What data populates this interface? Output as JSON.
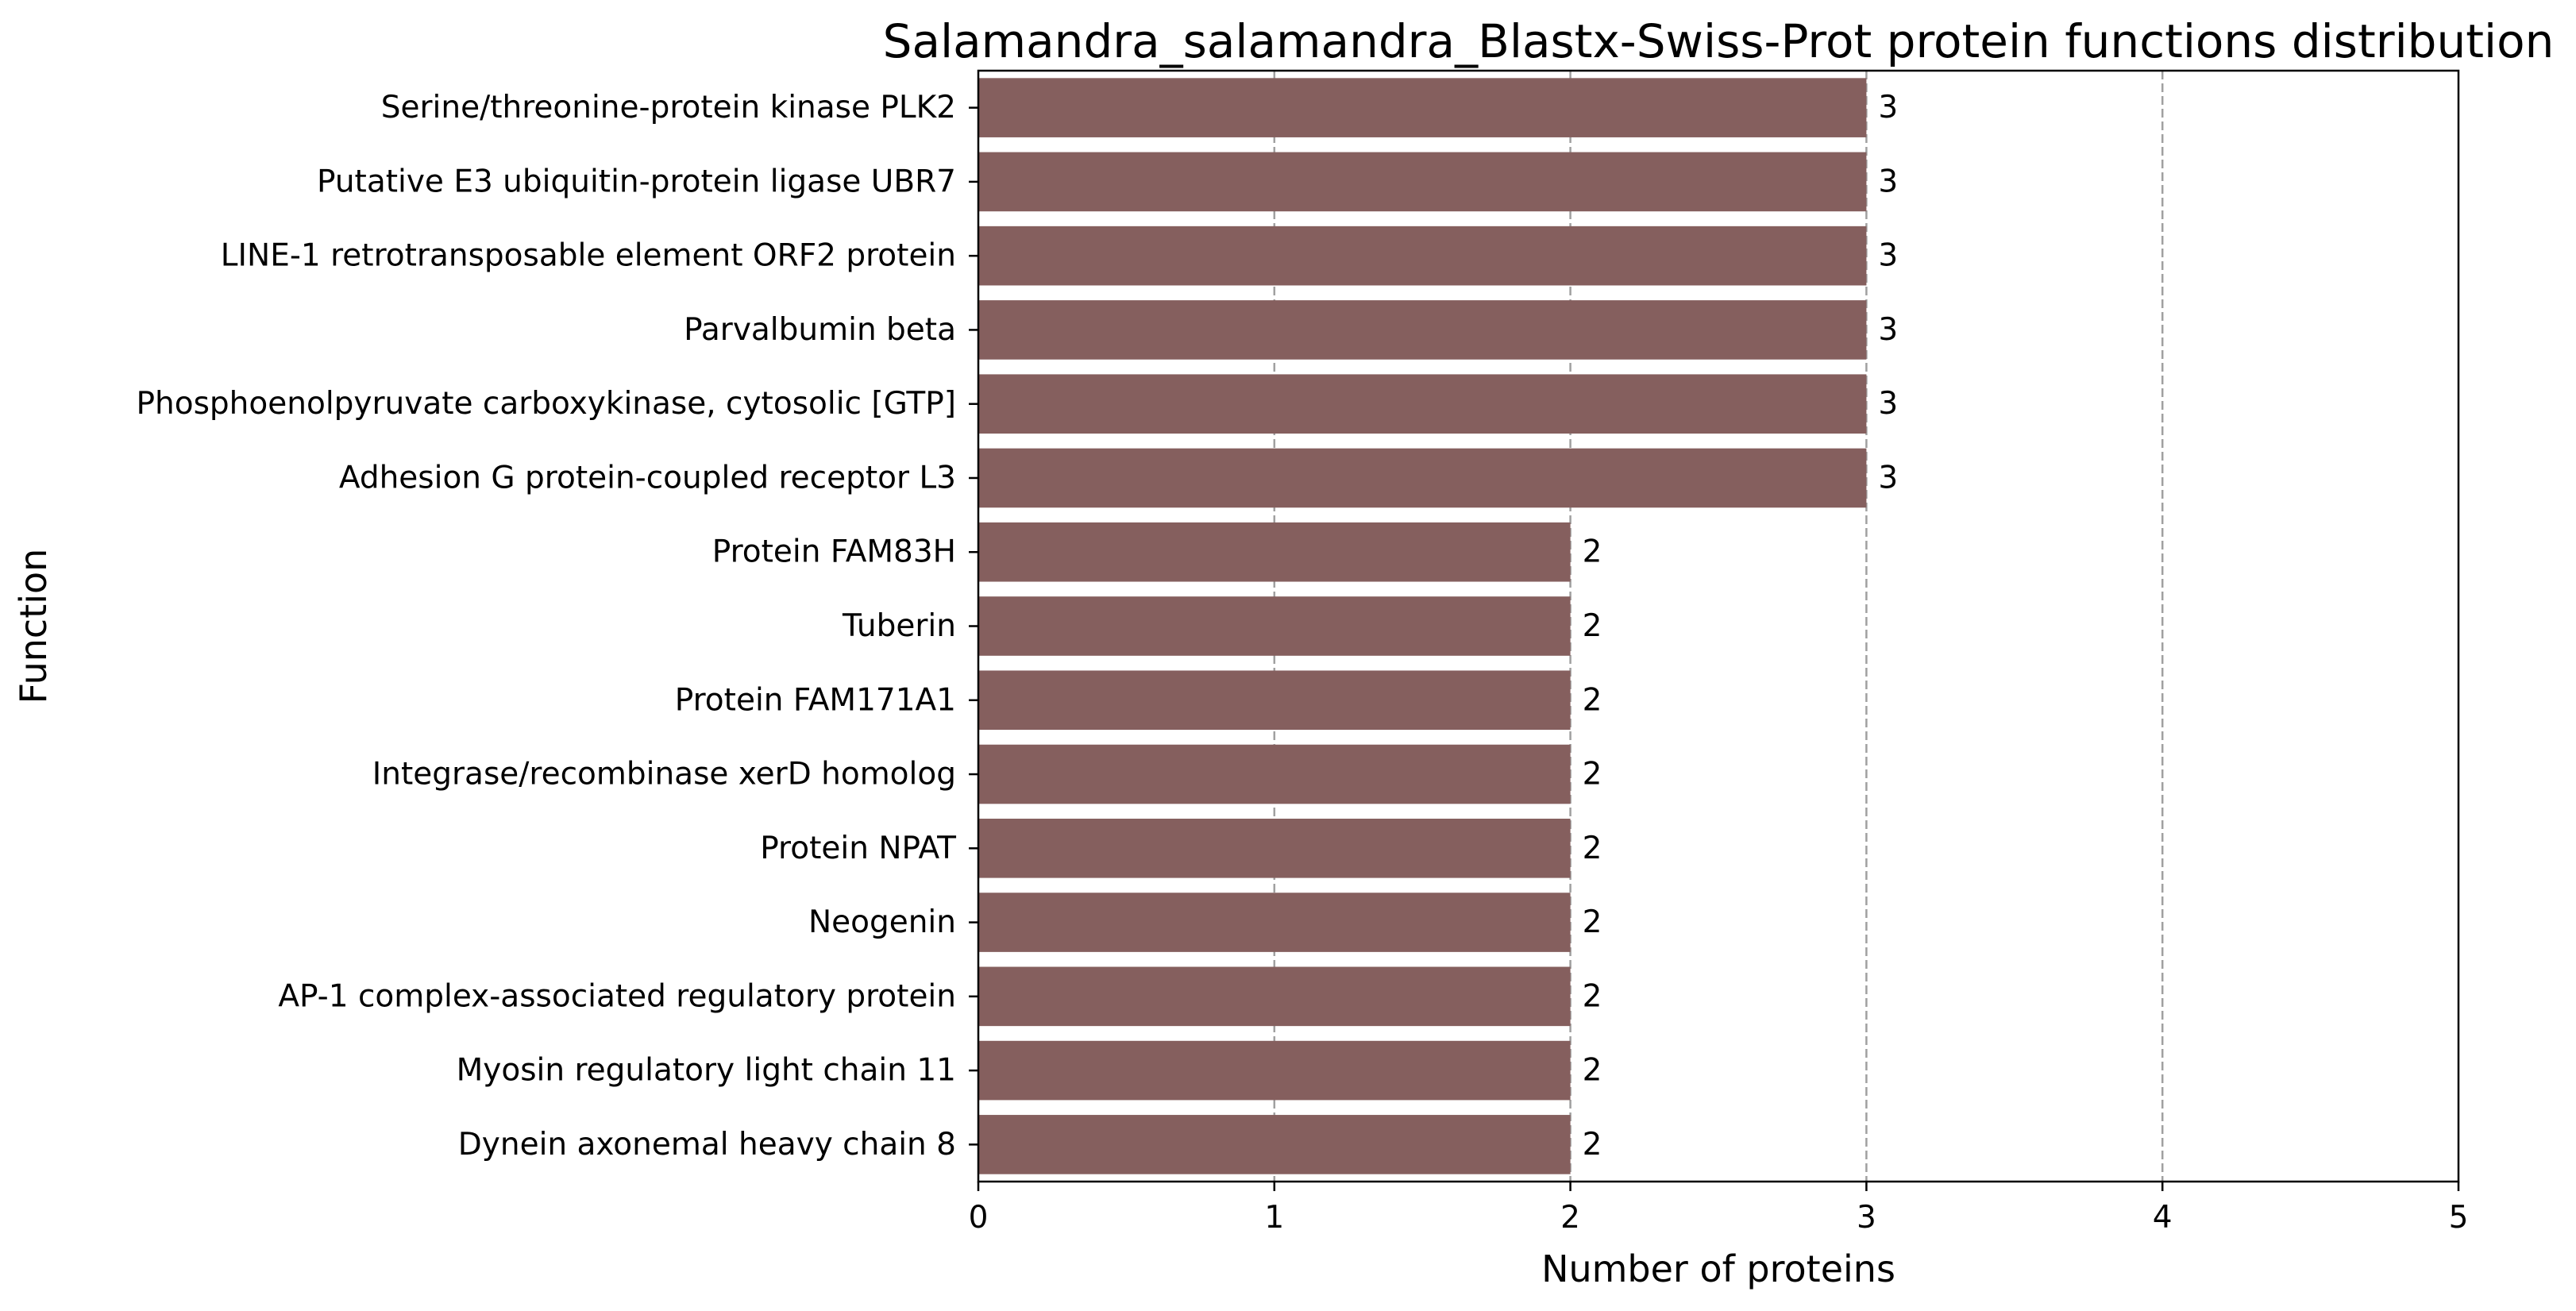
{
  "chart_data": {
    "type": "bar",
    "orientation": "horizontal",
    "title": "Salamandra_salamandra_Blastx-Swiss-Prot protein functions distribution",
    "xlabel": "Number of proteins",
    "ylabel": "Function",
    "categories": [
      "Serine/threonine-protein kinase PLK2",
      "Putative E3 ubiquitin-protein ligase UBR7",
      "LINE-1 retrotransposable element ORF2 protein",
      "Parvalbumin beta",
      "Phosphoenolpyruvate carboxykinase, cytosolic [GTP]",
      "Adhesion G protein-coupled receptor L3",
      "Protein FAM83H",
      "Tuberin",
      "Protein FAM171A1",
      "Integrase/recombinase xerD homolog",
      "Protein NPAT",
      "Neogenin",
      "AP-1 complex-associated regulatory protein",
      "Myosin regulatory light chain 11",
      "Dynein axonemal heavy chain 8"
    ],
    "values": [
      3,
      3,
      3,
      3,
      3,
      3,
      2,
      2,
      2,
      2,
      2,
      2,
      2,
      2,
      2
    ],
    "data_labels": [
      "3",
      "3",
      "3",
      "3",
      "3",
      "3",
      "2",
      "2",
      "2",
      "2",
      "2",
      "2",
      "2",
      "2",
      "2"
    ],
    "xlim": [
      0,
      5
    ],
    "xticks": [
      0,
      1,
      2,
      3,
      4,
      5
    ],
    "xtick_labels": [
      "0",
      "1",
      "2",
      "3",
      "4",
      "5"
    ],
    "grid": "vertical dashed gridlines",
    "legend": "none",
    "colors": {
      "bar": "#855f5e",
      "grid": "#a0a0a0",
      "axis": "#000000"
    }
  }
}
